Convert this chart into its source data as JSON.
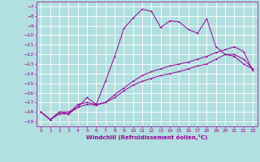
{
  "bg_color": "#b2dfdf",
  "grid_color": "#c8eaea",
  "line_color": "#990099",
  "xlabel": "Windchill (Refroidissement éolien,°C)",
  "xlim": [
    -0.5,
    23.5
  ],
  "ylim": [
    -19.5,
    -6.5
  ],
  "xticks": [
    0,
    1,
    2,
    3,
    4,
    5,
    6,
    7,
    8,
    9,
    10,
    11,
    12,
    13,
    14,
    15,
    16,
    17,
    18,
    19,
    20,
    21,
    22,
    23
  ],
  "yticks": [
    -7,
    -8,
    -9,
    -10,
    -11,
    -12,
    -13,
    -14,
    -15,
    -16,
    -17,
    -18,
    -19
  ],
  "curve1_x": [
    0,
    1,
    2,
    3,
    4,
    5,
    6,
    7,
    8,
    9,
    10,
    11,
    12,
    13,
    14,
    15,
    16,
    17,
    18,
    19,
    20,
    21,
    22,
    23
  ],
  "curve1_y": [
    -18.0,
    -18.8,
    -18.0,
    -18.0,
    -17.5,
    -16.5,
    -17.2,
    -14.8,
    -12.2,
    -9.3,
    -8.2,
    -7.3,
    -7.5,
    -9.2,
    -8.5,
    -8.6,
    -9.4,
    -9.8,
    -8.3,
    -11.2,
    -12.0,
    -12.2,
    -13.0,
    -13.5
  ],
  "curve2_x": [
    0,
    1,
    2,
    3,
    4,
    5,
    6,
    7,
    8,
    9,
    10,
    11,
    12,
    13,
    14,
    15,
    16,
    17,
    18,
    19,
    20,
    21,
    22,
    23
  ],
  "curve2_y": [
    -18.0,
    -18.8,
    -18.0,
    -18.2,
    -17.2,
    -17.0,
    -17.2,
    -17.0,
    -16.5,
    -15.8,
    -15.2,
    -14.8,
    -14.5,
    -14.2,
    -14.0,
    -13.8,
    -13.5,
    -13.2,
    -13.0,
    -12.5,
    -12.0,
    -12.0,
    -12.5,
    -13.5
  ],
  "curve3_x": [
    0,
    1,
    2,
    3,
    4,
    5,
    6,
    7,
    8,
    9,
    10,
    11,
    12,
    13,
    14,
    15,
    16,
    17,
    18,
    19,
    20,
    21,
    22,
    23
  ],
  "curve3_y": [
    -18.0,
    -18.8,
    -18.2,
    -18.2,
    -17.5,
    -17.2,
    -17.3,
    -17.0,
    -16.2,
    -15.5,
    -14.8,
    -14.2,
    -13.8,
    -13.5,
    -13.2,
    -13.0,
    -12.8,
    -12.5,
    -12.2,
    -11.8,
    -11.5,
    -11.2,
    -11.7,
    -13.7
  ],
  "tick_fontsize": 4.2,
  "xlabel_fontsize": 5.0,
  "lw": 0.7,
  "ms": 2.0,
  "mew": 0.6
}
